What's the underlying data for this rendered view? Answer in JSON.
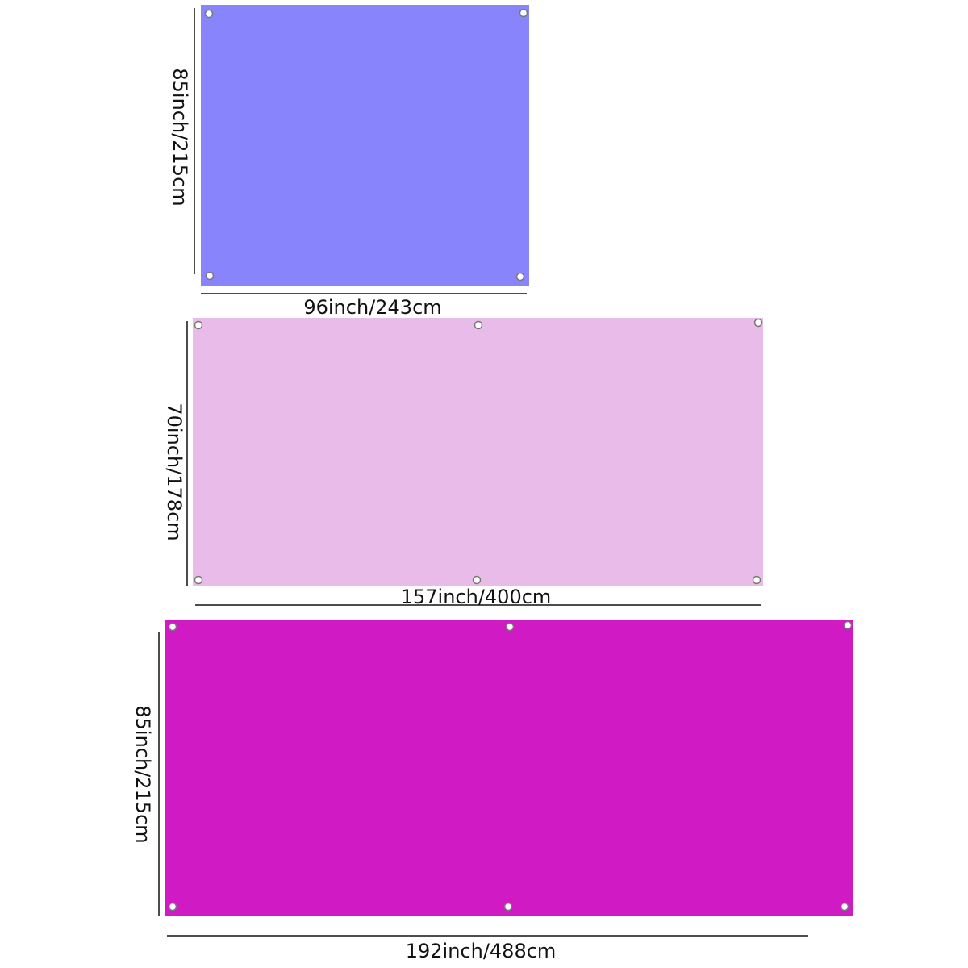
{
  "banners": [
    {
      "width_label": "96inch/243cm",
      "height_label": "85inch/215cm"
    },
    {
      "width_label": "157inch/400cm",
      "height_label": "70inch/178cm"
    },
    {
      "width_label": "192inch/488cm",
      "height_label": "85inch/215cm"
    }
  ]
}
